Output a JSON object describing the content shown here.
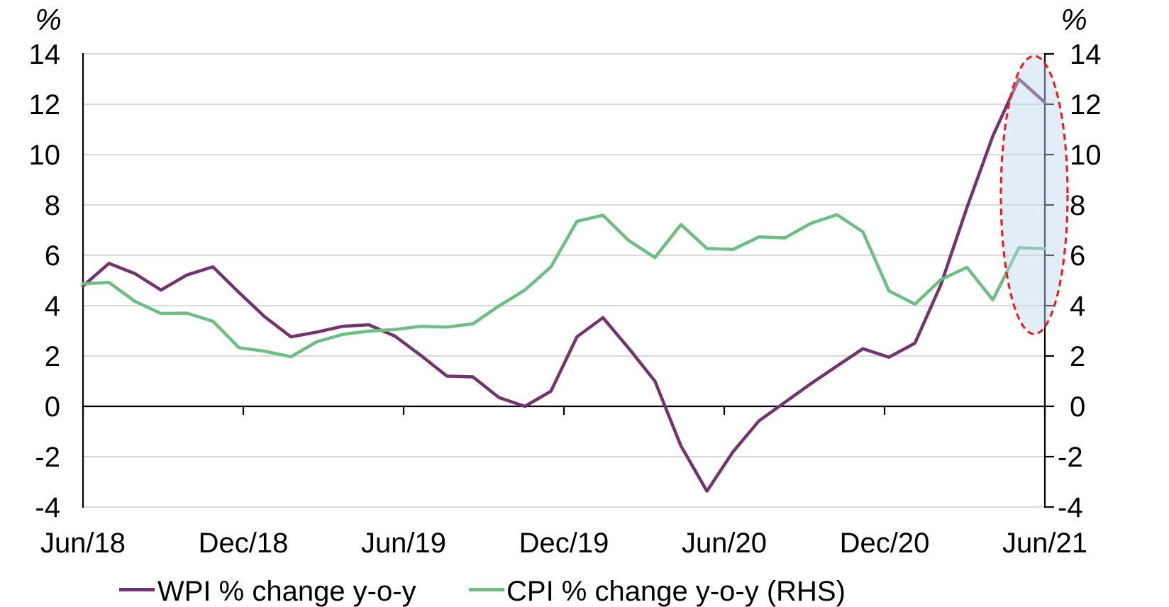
{
  "chart_data": {
    "type": "line",
    "title": "",
    "y_axis_unit_left": "%",
    "y_axis_unit_right": "%",
    "ylim": [
      -4,
      14
    ],
    "y_ticks": [
      14,
      12,
      10,
      8,
      6,
      4,
      2,
      0,
      -2,
      -4
    ],
    "x_tick_labels": [
      "Jun/18",
      "Dec/18",
      "Jun/19",
      "Dec/19",
      "Jun/20",
      "Dec/20",
      "Jun/21"
    ],
    "grid": "horizontal",
    "legend_position": "bottom",
    "series": [
      {
        "name": "WPI % change y-o-y",
        "axis": "left",
        "color": "#72336E",
        "values": [
          4.78,
          5.68,
          5.27,
          4.62,
          5.22,
          5.54,
          4.52,
          3.55,
          2.76,
          2.95,
          3.18,
          3.24,
          2.79,
          2.02,
          1.2,
          1.17,
          0.35,
          0.0,
          0.6,
          2.76,
          3.52,
          2.3,
          1.0,
          -1.57,
          -3.37,
          -1.81,
          -0.58,
          0.16,
          0.9,
          1.6,
          2.29,
          1.95,
          2.51,
          4.83,
          7.89,
          10.74,
          13.0,
          12.07
        ]
      },
      {
        "name": "CPI % change y-o-y (RHS)",
        "axis": "right",
        "color": "#69C082",
        "values": [
          4.87,
          4.92,
          4.17,
          3.69,
          3.7,
          3.38,
          2.33,
          2.19,
          1.97,
          2.57,
          2.86,
          2.99,
          3.05,
          3.18,
          3.15,
          3.28,
          3.99,
          4.62,
          5.54,
          7.35,
          7.59,
          6.58,
          5.91,
          7.22,
          6.27,
          6.23,
          6.73,
          6.69,
          7.27,
          7.61,
          6.93,
          4.59,
          4.06,
          5.03,
          5.52,
          4.23,
          6.3,
          6.26
        ]
      }
    ],
    "annotation": {
      "shape": "ellipse",
      "stroke": "#FF1111",
      "stroke_style": "dashed",
      "fill": "#BDD7EE",
      "fill_opacity": 0.45,
      "covers": "last two data points near Jun/21"
    },
    "colors": {
      "gridline": "#D9D9D9",
      "axis": "#000000",
      "text": "#000000"
    }
  }
}
